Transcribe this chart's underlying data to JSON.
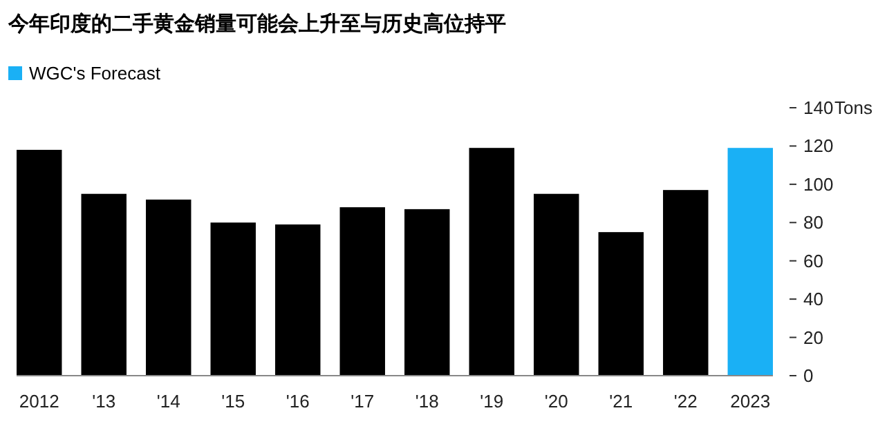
{
  "chart_data": {
    "type": "bar",
    "title": "今年印度的二手黄金销量可能会上升至与历史高位持平",
    "categories": [
      "2012",
      "'13",
      "'14",
      "'15",
      "'16",
      "'17",
      "'18",
      "'19",
      "'20",
      "'21",
      "'22",
      "2023"
    ],
    "series": [
      {
        "color": "#000000",
        "values": [
          118,
          95,
          92,
          80,
          79,
          88,
          87,
          119,
          95,
          75,
          97,
          null
        ]
      },
      {
        "name": "WGC's Forecast",
        "color": "#1ab0f5",
        "values": [
          null,
          null,
          null,
          null,
          null,
          null,
          null,
          null,
          null,
          null,
          null,
          119
        ]
      }
    ],
    "stacked": true,
    "ylim": [
      0,
      140
    ],
    "yticks": [
      0,
      20,
      40,
      60,
      80,
      100,
      120,
      140
    ],
    "ylabel": "Tons",
    "legend": "top left"
  }
}
